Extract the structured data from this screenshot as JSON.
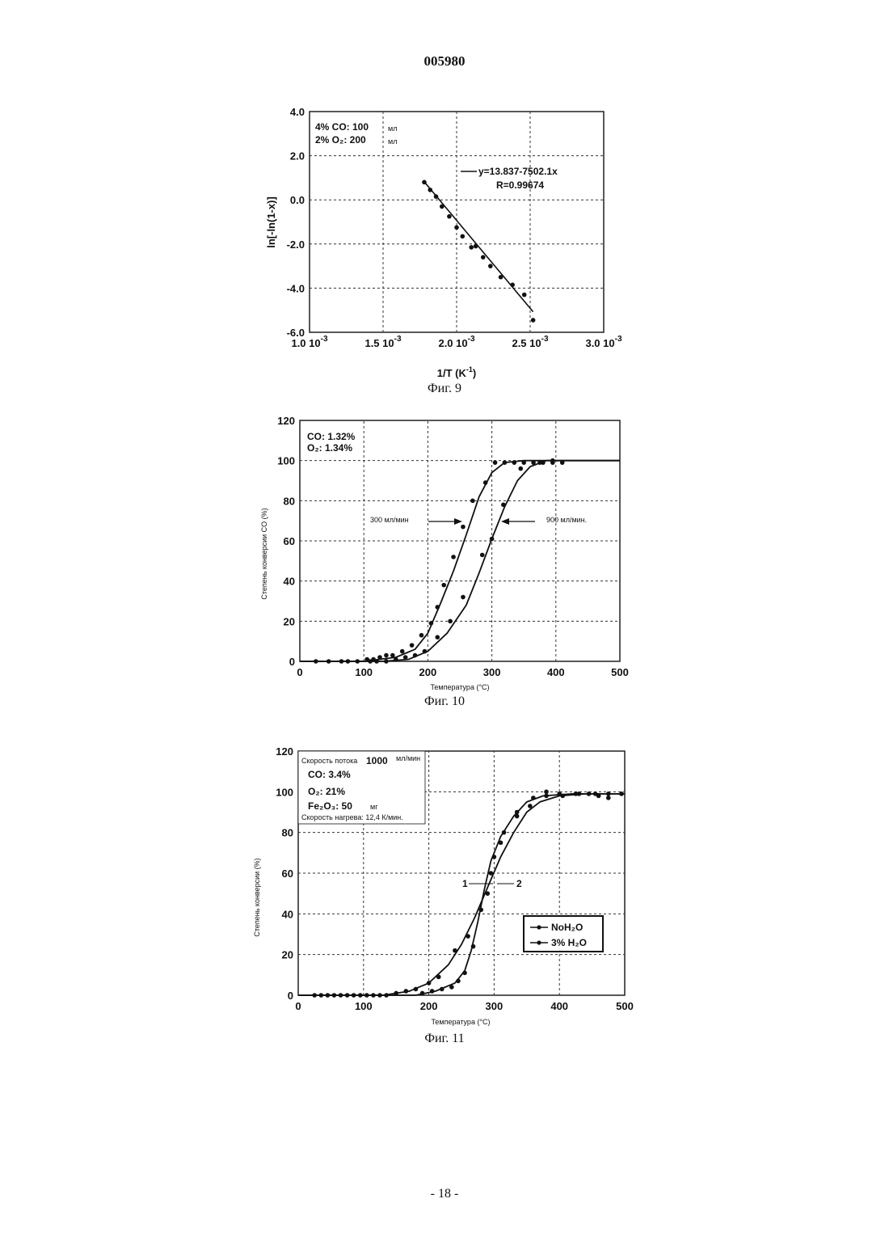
{
  "header": {
    "title": "005980"
  },
  "footer": {
    "page_number": "- 18 -"
  },
  "chart_data": [
    {
      "id": "fig9",
      "type": "scatter",
      "caption": "Фиг. 9",
      "xlabel": "1/T (K",
      "xlabel_sup": "-1",
      "xlabel_close": ")",
      "ylabel": "ln[-ln(1-x)]",
      "xlim": [
        0.001,
        0.003
      ],
      "ylim": [
        -6,
        4
      ],
      "x_ticks": [
        {
          "value": 0.001,
          "base": "1.0 10",
          "exp": "-3"
        },
        {
          "value": 0.0015,
          "base": "1.5 10",
          "exp": "-3"
        },
        {
          "value": 0.002,
          "base": "2.0 10",
          "exp": "-3"
        },
        {
          "value": 0.0025,
          "base": "2.5 10",
          "exp": "-3"
        },
        {
          "value": 0.003,
          "base": "3.0 10",
          "exp": "-3"
        }
      ],
      "y_ticks": [
        {
          "value": 4,
          "label": "4.0"
        },
        {
          "value": 2,
          "label": "2.0"
        },
        {
          "value": 0,
          "label": "0.0"
        },
        {
          "value": -2,
          "label": "-2.0"
        },
        {
          "value": -4,
          "label": "-4.0"
        },
        {
          "value": -6,
          "label": "-6.0"
        }
      ],
      "grid": true,
      "conditions": [
        {
          "text": "4% CO: 100",
          "unit": "мл"
        },
        {
          "text": "2% O₂: 200",
          "unit": "мл"
        }
      ],
      "legend": {
        "entries": [
          "y=13.837-7502.1x",
          "R=0.99674"
        ],
        "position": "top-right"
      },
      "series": [
        {
          "points": [
            [
              0.00178,
              0.8
            ],
            [
              0.00182,
              0.45
            ],
            [
              0.00186,
              0.15
            ],
            [
              0.0019,
              -0.3
            ],
            [
              0.00195,
              -0.75
            ],
            [
              0.002,
              -1.25
            ],
            [
              0.00204,
              -1.65
            ],
            [
              0.0021,
              -2.15
            ],
            [
              0.00213,
              -2.1
            ],
            [
              0.00218,
              -2.6
            ],
            [
              0.00223,
              -3.0
            ],
            [
              0.0023,
              -3.5
            ],
            [
              0.00238,
              -3.85
            ],
            [
              0.00246,
              -4.3
            ],
            [
              0.00252,
              -5.45
            ]
          ],
          "fit": [
            [
              0.00178,
              0.82
            ],
            [
              0.00252,
              -5.07
            ]
          ]
        }
      ]
    },
    {
      "id": "fig10",
      "type": "line",
      "caption": "Фиг. 10",
      "xlabel": "Температура (°C)",
      "ylabel": "Степень конверсии CO (%)",
      "xlim": [
        0,
        500
      ],
      "ylim": [
        0,
        120
      ],
      "x_ticks": [
        0,
        100,
        200,
        300,
        400,
        500
      ],
      "y_ticks": [
        0,
        20,
        40,
        60,
        80,
        100,
        120
      ],
      "grid": true,
      "conditions": [
        {
          "text": "CO: 1.32%"
        },
        {
          "text": "O₂: 1.34%"
        }
      ],
      "annotations": [
        "300 мл/мин",
        "900 мл/мин."
      ],
      "series": [
        {
          "name": "300 мл/мин",
          "points": [
            [
              25,
              0
            ],
            [
              45,
              0
            ],
            [
              65,
              0
            ],
            [
              75,
              0
            ],
            [
              90,
              0
            ],
            [
              105,
              1
            ],
            [
              115,
              1
            ],
            [
              125,
              2
            ],
            [
              135,
              3
            ],
            [
              145,
              3
            ],
            [
              160,
              5
            ],
            [
              175,
              8
            ],
            [
              190,
              13
            ],
            [
              205,
              19
            ],
            [
              215,
              27
            ],
            [
              225,
              38
            ],
            [
              240,
              52
            ],
            [
              255,
              67
            ],
            [
              270,
              80
            ],
            [
              290,
              89
            ],
            [
              305,
              99
            ],
            [
              320,
              99
            ],
            [
              335,
              99
            ],
            [
              350,
              99
            ],
            [
              365,
              99
            ],
            [
              380,
              99
            ],
            [
              395,
              99
            ],
            [
              410,
              99
            ]
          ],
          "curve": [
            [
              0,
              0
            ],
            [
              100,
              0
            ],
            [
              150,
              2
            ],
            [
              180,
              6
            ],
            [
              200,
              14
            ],
            [
              220,
              29
            ],
            [
              240,
              45
            ],
            [
              260,
              63
            ],
            [
              280,
              82
            ],
            [
              300,
              94
            ],
            [
              320,
              99
            ],
            [
              350,
              100
            ],
            [
              500,
              100
            ]
          ]
        },
        {
          "name": "900 мл/мин.",
          "points": [
            [
              110,
              0
            ],
            [
              120,
              0
            ],
            [
              135,
              0
            ],
            [
              150,
              1
            ],
            [
              165,
              2
            ],
            [
              180,
              3
            ],
            [
              195,
              5
            ],
            [
              215,
              12
            ],
            [
              235,
              20
            ],
            [
              255,
              32
            ],
            [
              285,
              53
            ],
            [
              300,
              61
            ],
            [
              318,
              78
            ],
            [
              345,
              96
            ],
            [
              375,
              99
            ],
            [
              395,
              100
            ]
          ],
          "curve": [
            [
              0,
              0
            ],
            [
              130,
              0
            ],
            [
              170,
              1
            ],
            [
              200,
              5
            ],
            [
              230,
              14
            ],
            [
              260,
              28
            ],
            [
              280,
              44
            ],
            [
              300,
              61
            ],
            [
              320,
              77
            ],
            [
              340,
              90
            ],
            [
              360,
              97
            ],
            [
              385,
              100
            ],
            [
              500,
              100
            ]
          ]
        }
      ]
    },
    {
      "id": "fig11",
      "type": "line",
      "caption": "Фиг. 11",
      "xlabel": "Температура (°C)",
      "ylabel": "Степень конверсии (%)",
      "xlim": [
        0,
        500
      ],
      "ylim": [
        0,
        120
      ],
      "x_ticks": [
        0,
        100,
        200,
        300,
        400,
        500
      ],
      "y_ticks": [
        0,
        20,
        40,
        60,
        80,
        100,
        120
      ],
      "grid": true,
      "conditions": [
        {
          "text": "Скорость потока",
          "value": "1000",
          "unit": "мл/мин"
        },
        {
          "text": "CO: 3.4%"
        },
        {
          "text": "O₂: 21%"
        },
        {
          "text": "Fe₂O₃: 50",
          "unit": "мг"
        },
        {
          "text": "Скорость нагрева: 12,4 К/мин."
        }
      ],
      "curve_labels": [
        "1",
        "2"
      ],
      "legend": {
        "entries": [
          "NoH₂O",
          "3% H₂O"
        ],
        "position": "bottom-right"
      },
      "series": [
        {
          "name": "NoH₂O",
          "points": [
            [
              25,
              0
            ],
            [
              35,
              0
            ],
            [
              45,
              0
            ],
            [
              55,
              0
            ],
            [
              65,
              0
            ],
            [
              75,
              0
            ],
            [
              85,
              0
            ],
            [
              95,
              0
            ],
            [
              105,
              0
            ],
            [
              115,
              0
            ],
            [
              125,
              0
            ],
            [
              135,
              0
            ],
            [
              150,
              1
            ],
            [
              165,
              2
            ],
            [
              180,
              3
            ],
            [
              200,
              6
            ],
            [
              215,
              9
            ],
            [
              240,
              22
            ],
            [
              260,
              29
            ],
            [
              290,
              50
            ],
            [
              300,
              68
            ],
            [
              315,
              80
            ],
            [
              335,
              88
            ],
            [
              355,
              93
            ],
            [
              380,
              98
            ],
            [
              405,
              98
            ],
            [
              430,
              99
            ],
            [
              455,
              99
            ],
            [
              475,
              99
            ],
            [
              495,
              99
            ]
          ],
          "curve": [
            [
              0,
              0
            ],
            [
              130,
              0
            ],
            [
              170,
              2
            ],
            [
              200,
              6
            ],
            [
              230,
              15
            ],
            [
              250,
              25
            ],
            [
              270,
              38
            ],
            [
              290,
              53
            ],
            [
              310,
              68
            ],
            [
              330,
              80
            ],
            [
              350,
              90
            ],
            [
              370,
              95
            ],
            [
              400,
              98
            ],
            [
              440,
              99
            ],
            [
              500,
              99
            ]
          ]
        },
        {
          "name": "3% H₂O",
          "points": [
            [
              190,
              1
            ],
            [
              205,
              2
            ],
            [
              220,
              3
            ],
            [
              235,
              4
            ],
            [
              245,
              7
            ],
            [
              255,
              11
            ],
            [
              268,
              24
            ],
            [
              280,
              42
            ],
            [
              295,
              60
            ],
            [
              310,
              75
            ],
            [
              335,
              90
            ],
            [
              360,
              97
            ],
            [
              380,
              100
            ],
            [
              400,
              99
            ],
            [
              425,
              99
            ],
            [
              445,
              99
            ],
            [
              460,
              98
            ],
            [
              475,
              97
            ]
          ],
          "curve": [
            [
              0,
              0
            ],
            [
              180,
              0
            ],
            [
              210,
              2
            ],
            [
              240,
              6
            ],
            [
              255,
              12
            ],
            [
              265,
              22
            ],
            [
              275,
              36
            ],
            [
              285,
              52
            ],
            [
              295,
              66
            ],
            [
              310,
              78
            ],
            [
              330,
              88
            ],
            [
              350,
              95
            ],
            [
              375,
              98
            ],
            [
              420,
              99
            ],
            [
              500,
              99
            ]
          ]
        }
      ]
    }
  ]
}
